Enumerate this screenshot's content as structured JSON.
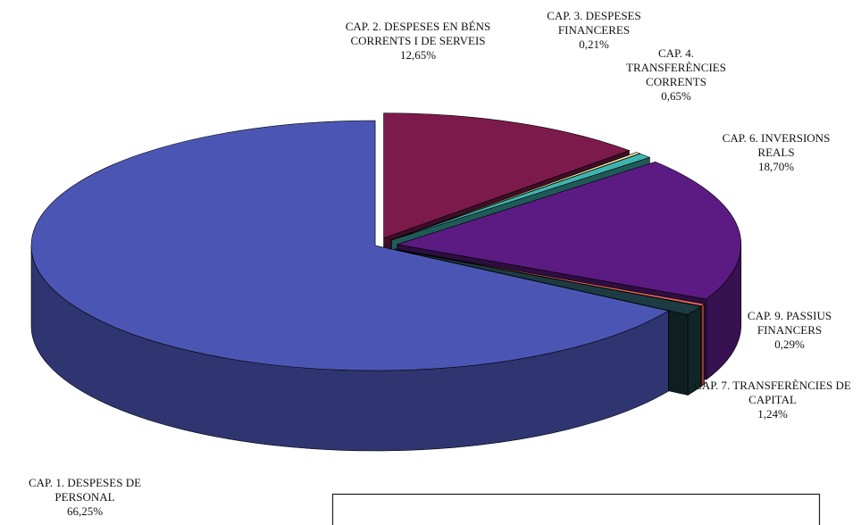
{
  "chart_data": {
    "type": "pie3d",
    "labels": [
      "CAP. 1. DESPESES DE PERSONAL",
      "CAP. 2. DESPESES EN BÉNS CORRENTS I DE SERVEIS",
      "CAP. 3. DESPESES FINANCERES",
      "CAP. 4. TRANSFERÈNCIES CORRENTS",
      "CAP. 6. INVERSIONS REALS",
      "CAP. 9. PASSIUS FINANCERS",
      "CAP. 7. TRANSFERÈNCIES DE CAPITAL"
    ],
    "values": [
      66.25,
      12.65,
      0.21,
      0.65,
      18.7,
      0.29,
      1.24
    ],
    "value_labels": [
      "66,25%",
      "12,65%",
      "0,21%",
      "0,65%",
      "18,70%",
      "0,29%",
      "1,24%"
    ],
    "colors": [
      "#4b56b4",
      "#7d1a4c",
      "#f2f0a6",
      "#3fb3b0",
      "#5b1b82",
      "#e2625e",
      "#1d3b42"
    ]
  }
}
